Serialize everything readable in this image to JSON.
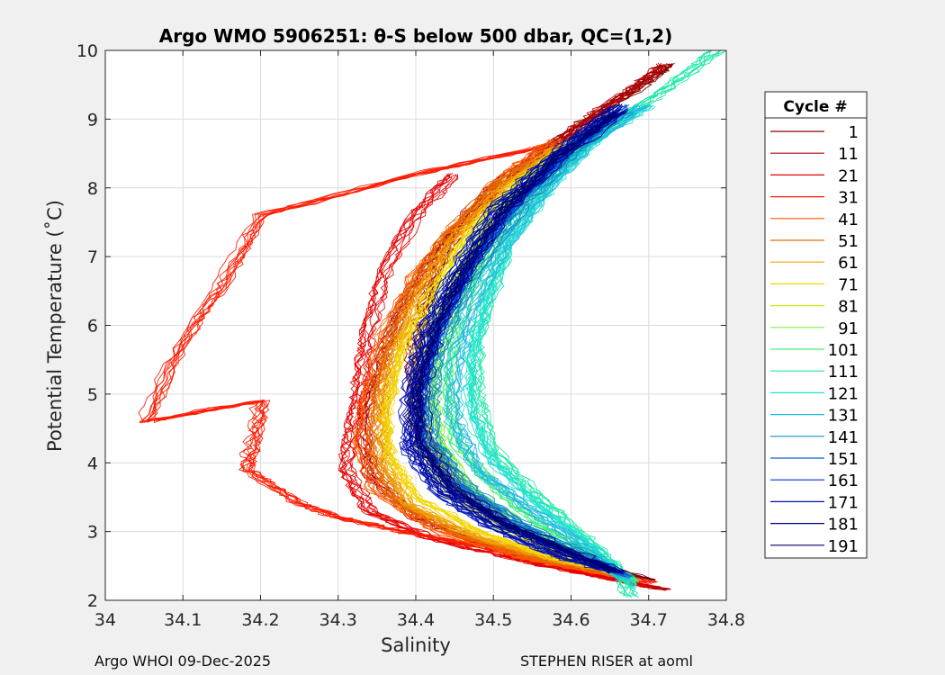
{
  "footer": {
    "left": "Argo WHOI 09-Dec-2025",
    "right": "STEPHEN RISER at aoml"
  },
  "chart_data": {
    "type": "line",
    "title": "Argo WMO 5906251: θ-S below 500 dbar,  QC=(1,2)",
    "xlabel": "Salinity",
    "ylabel": "Potential Temperature (˚C)",
    "xlim": [
      34.0,
      34.8
    ],
    "ylim": [
      2,
      10
    ],
    "xticks": [
      34,
      34.1,
      34.2,
      34.3,
      34.4,
      34.5,
      34.6,
      34.7,
      34.8
    ],
    "xtick_labels": [
      "34",
      "34.1",
      "34.2",
      "34.3",
      "34.4",
      "34.5",
      "34.6",
      "34.7",
      "34.8"
    ],
    "yticks": [
      2,
      3,
      4,
      5,
      6,
      7,
      8,
      9,
      10
    ],
    "ytick_labels": [
      "2",
      "3",
      "4",
      "5",
      "6",
      "7",
      "8",
      "9",
      "10"
    ],
    "grid": true,
    "legend_title": "Cycle #",
    "legend_position": "right",
    "series": [
      {
        "name": "1",
        "color": "#800000",
        "points": [
          [
            34.725,
            9.8
          ],
          [
            34.69,
            9.5
          ],
          [
            34.63,
            9.05
          ],
          [
            34.56,
            8.5
          ],
          [
            34.5,
            8.0
          ],
          [
            34.44,
            7.2
          ],
          [
            34.41,
            6.3
          ],
          [
            34.395,
            5.5
          ],
          [
            34.4,
            4.6
          ],
          [
            34.45,
            3.7
          ],
          [
            34.52,
            3.05
          ],
          [
            34.6,
            2.6
          ],
          [
            34.7,
            2.3
          ]
        ]
      },
      {
        "name": "11",
        "color": "#b30000",
        "points": [
          [
            34.72,
            9.8
          ],
          [
            34.68,
            9.45
          ],
          [
            34.62,
            9.0
          ],
          [
            34.55,
            8.4
          ],
          [
            34.48,
            7.8
          ],
          [
            34.42,
            7.0
          ],
          [
            34.38,
            6.2
          ],
          [
            34.35,
            5.4
          ],
          [
            34.33,
            4.6
          ],
          [
            34.34,
            3.8
          ],
          [
            34.4,
            3.2
          ],
          [
            34.5,
            2.75
          ],
          [
            34.6,
            2.45
          ],
          [
            34.72,
            2.15
          ]
        ]
      },
      {
        "name": "21",
        "color": "#e60000",
        "points": [
          [
            34.45,
            8.2
          ],
          [
            34.4,
            7.6
          ],
          [
            34.36,
            6.8
          ],
          [
            34.34,
            6.0
          ],
          [
            34.33,
            5.3
          ],
          [
            34.32,
            4.6
          ],
          [
            34.31,
            3.9
          ],
          [
            34.34,
            3.3
          ],
          [
            34.42,
            2.9
          ],
          [
            34.55,
            2.55
          ],
          [
            34.7,
            2.2
          ]
        ]
      },
      {
        "name": "31",
        "color": "#ff1a00",
        "points": [
          [
            34.56,
            8.6
          ],
          [
            34.4,
            8.2
          ],
          [
            34.2,
            7.6
          ],
          [
            34.15,
            6.6
          ],
          [
            34.1,
            5.8
          ],
          [
            34.05,
            4.6
          ],
          [
            34.2,
            4.9
          ],
          [
            34.19,
            4.3
          ],
          [
            34.18,
            3.9
          ],
          [
            34.25,
            3.4
          ],
          [
            34.3,
            3.2
          ],
          [
            34.38,
            3.0
          ],
          [
            34.48,
            2.8
          ],
          [
            34.6,
            2.5
          ],
          [
            34.7,
            2.25
          ]
        ]
      },
      {
        "name": "41",
        "color": "#ff5a00",
        "points": [
          [
            34.58,
            8.7
          ],
          [
            34.52,
            8.2
          ],
          [
            34.46,
            7.5
          ],
          [
            34.4,
            6.7
          ],
          [
            34.36,
            5.8
          ],
          [
            34.34,
            5.0
          ],
          [
            34.33,
            4.3
          ],
          [
            34.35,
            3.6
          ],
          [
            34.43,
            3.0
          ],
          [
            34.55,
            2.6
          ],
          [
            34.66,
            2.35
          ]
        ]
      },
      {
        "name": "51",
        "color": "#e07000",
        "points": [
          [
            34.58,
            8.6
          ],
          [
            34.5,
            8.0
          ],
          [
            34.44,
            7.3
          ],
          [
            34.39,
            6.4
          ],
          [
            34.36,
            5.5
          ],
          [
            34.35,
            4.7
          ],
          [
            34.35,
            4.0
          ],
          [
            34.38,
            3.4
          ],
          [
            34.46,
            2.95
          ],
          [
            34.56,
            2.6
          ],
          [
            34.66,
            2.4
          ]
        ]
      },
      {
        "name": "61",
        "color": "#f0a000",
        "points": [
          [
            34.58,
            8.6
          ],
          [
            34.51,
            8.0
          ],
          [
            34.45,
            7.3
          ],
          [
            34.4,
            6.4
          ],
          [
            34.37,
            5.5
          ],
          [
            34.355,
            4.7
          ],
          [
            34.36,
            4.0
          ],
          [
            34.39,
            3.4
          ],
          [
            34.47,
            2.95
          ],
          [
            34.57,
            2.6
          ],
          [
            34.66,
            2.4
          ]
        ]
      },
      {
        "name": "71",
        "color": "#f2d600",
        "points": [
          [
            34.6,
            8.65
          ],
          [
            34.53,
            8.1
          ],
          [
            34.47,
            7.4
          ],
          [
            34.42,
            6.5
          ],
          [
            34.38,
            5.6
          ],
          [
            34.36,
            4.8
          ],
          [
            34.365,
            4.1
          ],
          [
            34.4,
            3.5
          ],
          [
            34.48,
            3.0
          ],
          [
            34.58,
            2.6
          ],
          [
            34.66,
            2.4
          ]
        ]
      },
      {
        "name": "81",
        "color": "#c8ef10",
        "points": [
          [
            34.62,
            8.8
          ],
          [
            34.55,
            8.2
          ],
          [
            34.49,
            7.5
          ],
          [
            34.44,
            6.6
          ],
          [
            34.41,
            5.7
          ],
          [
            34.4,
            4.9
          ],
          [
            34.41,
            4.2
          ],
          [
            34.45,
            3.5
          ],
          [
            34.52,
            3.0
          ],
          [
            34.6,
            2.6
          ],
          [
            34.67,
            2.35
          ]
        ]
      },
      {
        "name": "91",
        "color": "#80f040",
        "points": [
          [
            34.64,
            8.9
          ],
          [
            34.57,
            8.3
          ],
          [
            34.51,
            7.6
          ],
          [
            34.46,
            6.7
          ],
          [
            34.43,
            5.8
          ],
          [
            34.42,
            5.0
          ],
          [
            34.43,
            4.3
          ],
          [
            34.47,
            3.6
          ],
          [
            34.54,
            3.05
          ],
          [
            34.61,
            2.65
          ],
          [
            34.68,
            2.3
          ]
        ]
      },
      {
        "name": "101",
        "color": "#40f07a",
        "points": [
          [
            34.66,
            9.0
          ],
          [
            34.59,
            8.4
          ],
          [
            34.52,
            7.7
          ],
          [
            34.48,
            6.8
          ],
          [
            34.45,
            5.9
          ],
          [
            34.44,
            5.1
          ],
          [
            34.45,
            4.3
          ],
          [
            34.5,
            3.65
          ],
          [
            34.56,
            3.1
          ],
          [
            34.63,
            2.65
          ],
          [
            34.68,
            2.25
          ]
        ]
      },
      {
        "name": "111",
        "color": "#20e8a8",
        "points": [
          [
            34.79,
            10.0
          ],
          [
            34.72,
            9.4
          ],
          [
            34.65,
            8.9
          ],
          [
            34.58,
            8.2
          ],
          [
            34.53,
            7.5
          ],
          [
            34.5,
            6.6
          ],
          [
            34.48,
            5.8
          ],
          [
            34.48,
            5.0
          ],
          [
            34.5,
            4.2
          ],
          [
            34.55,
            3.6
          ],
          [
            34.6,
            3.1
          ],
          [
            34.65,
            2.6
          ],
          [
            34.68,
            2.05
          ]
        ]
      },
      {
        "name": "121",
        "color": "#20e0d0",
        "points": [
          [
            34.7,
            9.2
          ],
          [
            34.63,
            8.7
          ],
          [
            34.57,
            8.0
          ],
          [
            34.52,
            7.2
          ],
          [
            34.49,
            6.3
          ],
          [
            34.47,
            5.5
          ],
          [
            34.47,
            4.7
          ],
          [
            34.5,
            4.0
          ],
          [
            34.56,
            3.35
          ],
          [
            34.63,
            2.75
          ],
          [
            34.68,
            2.2
          ]
        ]
      },
      {
        "name": "131",
        "color": "#20b8e0",
        "points": [
          [
            34.69,
            9.2
          ],
          [
            34.62,
            8.6
          ],
          [
            34.56,
            7.9
          ],
          [
            34.51,
            7.1
          ],
          [
            34.47,
            6.2
          ],
          [
            34.45,
            5.4
          ],
          [
            34.45,
            4.6
          ],
          [
            34.48,
            3.9
          ],
          [
            34.55,
            3.3
          ],
          [
            34.62,
            2.75
          ],
          [
            34.67,
            2.3
          ]
        ]
      },
      {
        "name": "141",
        "color": "#1090c0",
        "points": [
          [
            34.67,
            9.1
          ],
          [
            34.6,
            8.5
          ],
          [
            34.54,
            7.8
          ],
          [
            34.48,
            6.9
          ],
          [
            34.44,
            6.0
          ],
          [
            34.42,
            5.2
          ],
          [
            34.42,
            4.4
          ],
          [
            34.46,
            3.7
          ],
          [
            34.53,
            3.15
          ],
          [
            34.61,
            2.7
          ],
          [
            34.67,
            2.35
          ]
        ]
      },
      {
        "name": "151",
        "color": "#1060d0",
        "points": [
          [
            34.67,
            9.2
          ],
          [
            34.6,
            8.6
          ],
          [
            34.53,
            7.8
          ],
          [
            34.47,
            6.9
          ],
          [
            34.43,
            6.0
          ],
          [
            34.41,
            5.2
          ],
          [
            34.41,
            4.4
          ],
          [
            34.45,
            3.7
          ],
          [
            34.52,
            3.15
          ],
          [
            34.6,
            2.7
          ],
          [
            34.67,
            2.35
          ]
        ]
      },
      {
        "name": "161",
        "color": "#0030e0",
        "points": [
          [
            34.66,
            9.1
          ],
          [
            34.58,
            8.4
          ],
          [
            34.51,
            7.6
          ],
          [
            34.46,
            6.7
          ],
          [
            34.42,
            5.8
          ],
          [
            34.4,
            5.0
          ],
          [
            34.4,
            4.3
          ],
          [
            34.44,
            3.6
          ],
          [
            34.51,
            3.1
          ],
          [
            34.59,
            2.7
          ],
          [
            34.66,
            2.4
          ]
        ]
      },
      {
        "name": "171",
        "color": "#0010b0",
        "points": [
          [
            34.66,
            9.2
          ],
          [
            34.58,
            8.5
          ],
          [
            34.5,
            7.7
          ],
          [
            34.45,
            6.8
          ],
          [
            34.41,
            5.9
          ],
          [
            34.39,
            5.0
          ],
          [
            34.39,
            4.2
          ],
          [
            34.43,
            3.55
          ],
          [
            34.5,
            3.05
          ],
          [
            34.58,
            2.65
          ],
          [
            34.66,
            2.4
          ]
        ]
      },
      {
        "name": "181",
        "color": "#000090",
        "points": [
          [
            34.66,
            9.15
          ],
          [
            34.58,
            8.45
          ],
          [
            34.51,
            7.65
          ],
          [
            34.46,
            6.75
          ],
          [
            34.42,
            5.85
          ],
          [
            34.4,
            5.05
          ],
          [
            34.4,
            4.25
          ],
          [
            34.44,
            3.6
          ],
          [
            34.51,
            3.1
          ],
          [
            34.59,
            2.7
          ],
          [
            34.66,
            2.4
          ]
        ]
      },
      {
        "name": "191",
        "color": "#000070",
        "points": [
          [
            34.665,
            9.1
          ],
          [
            34.59,
            8.45
          ],
          [
            34.52,
            7.7
          ],
          [
            34.47,
            6.85
          ],
          [
            34.43,
            5.95
          ],
          [
            34.41,
            5.1
          ],
          [
            34.41,
            4.3
          ],
          [
            34.45,
            3.65
          ],
          [
            34.52,
            3.12
          ],
          [
            34.6,
            2.72
          ],
          [
            34.665,
            2.42
          ]
        ]
      }
    ]
  }
}
